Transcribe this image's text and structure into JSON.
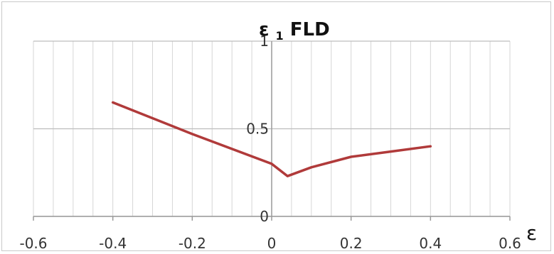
{
  "chart_data": {
    "type": "line",
    "title_symbol": "ε",
    "title_subscript": "1",
    "title_rest": " FLD",
    "xlabel": "ε",
    "ylabel": "",
    "xlim": [
      -0.6,
      0.6
    ],
    "ylim": [
      0,
      1
    ],
    "x_ticks": [
      -0.6,
      -0.4,
      -0.2,
      0,
      0.2,
      0.4,
      0.6
    ],
    "x_tick_labels": [
      "-0.6",
      "-0.4",
      "-0.2",
      "0",
      "0.2",
      "0.4",
      "0.6"
    ],
    "y_ticks": [
      0,
      0.5,
      1
    ],
    "y_tick_labels": [
      "0",
      "0.5",
      "1"
    ],
    "minor_x_step": 0.05,
    "grid": true,
    "series": [
      {
        "color": "#b03a3a",
        "x": [
          -0.4,
          -0.2,
          0.0,
          0.04,
          0.1,
          0.2,
          0.3,
          0.4
        ],
        "y": [
          0.65,
          0.47,
          0.3,
          0.23,
          0.28,
          0.34,
          0.37,
          0.4
        ]
      }
    ]
  }
}
